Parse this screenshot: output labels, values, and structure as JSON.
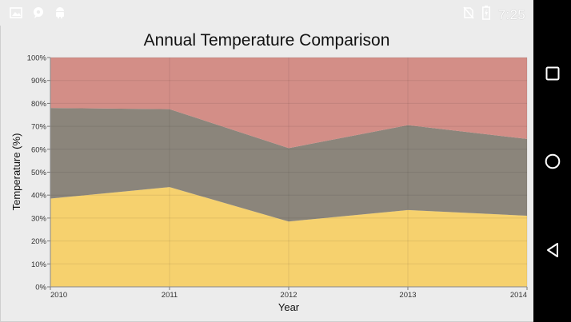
{
  "status_bar": {
    "time": "7:25",
    "left_icons": [
      "image-icon",
      "chat-bubble-icon",
      "android-icon"
    ],
    "right_icons": [
      "no-sim-icon",
      "battery-charging-icon"
    ]
  },
  "nav_bar": {
    "buttons": [
      "recent-apps-button",
      "home-button",
      "back-button"
    ]
  },
  "chart_data": {
    "type": "area",
    "stacked": "100%",
    "title": "Annual Temperature Comparison",
    "xlabel": "Year",
    "ylabel": "Temperature (%)",
    "categories": [
      "2010",
      "2011",
      "2012",
      "2013",
      "2014"
    ],
    "y_ticks": [
      "0%",
      "10%",
      "20%",
      "30%",
      "40%",
      "50%",
      "60%",
      "70%",
      "80%",
      "90%",
      "100%"
    ],
    "ylim": [
      0,
      100
    ],
    "grid": true,
    "series": [
      {
        "values": [
          38.5,
          43.5,
          28.5,
          33.5,
          31
        ],
        "color": "#f6d16e"
      },
      {
        "values": [
          39.5,
          34,
          32,
          37,
          33.5
        ],
        "color": "#8b857b"
      },
      {
        "values": [
          22,
          22.5,
          39.5,
          29.5,
          35.5
        ],
        "color": "#d38e87"
      }
    ]
  }
}
